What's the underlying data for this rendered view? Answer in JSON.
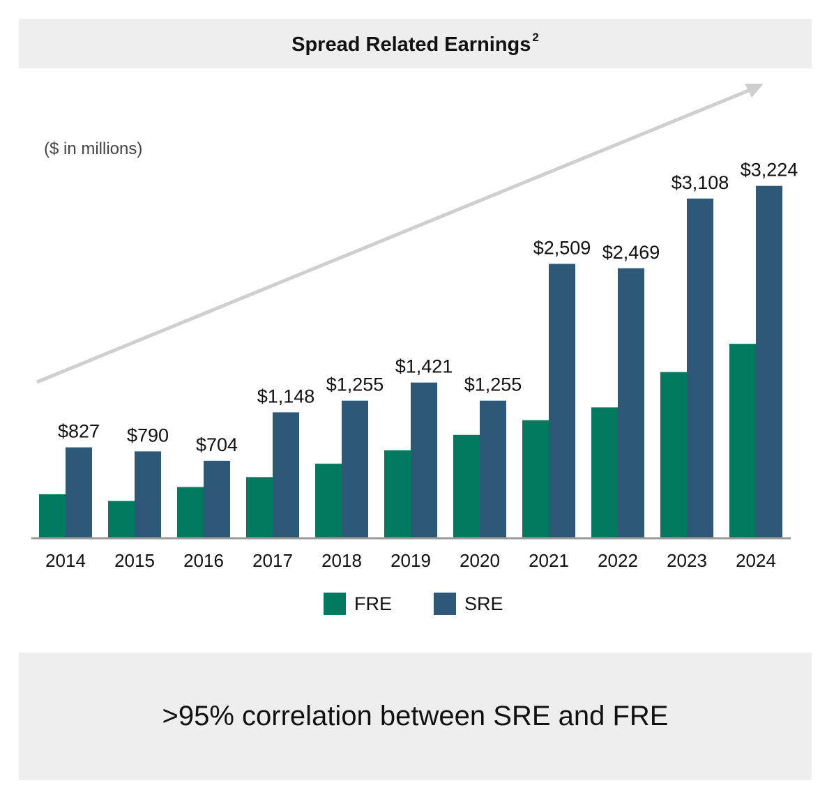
{
  "header": {
    "title": "Spread Related Earnings",
    "superscript": "2"
  },
  "units_note": "($ in millions)",
  "footer": {
    "text": ">95% correlation between SRE and FRE"
  },
  "colors": {
    "FRE": "#007a5e",
    "SRE": "#2d5878",
    "arrow": "#cfcfcf",
    "axis": "#999999"
  },
  "chart_data": {
    "type": "bar",
    "categories": [
      "2014",
      "2015",
      "2016",
      "2017",
      "2018",
      "2019",
      "2020",
      "2021",
      "2022",
      "2023",
      "2024"
    ],
    "series": [
      {
        "name": "FRE",
        "values": [
          397,
          335,
          463,
          554,
          677,
          800,
          941,
          1076,
          1193,
          1517,
          1776
        ],
        "labels": []
      },
      {
        "name": "SRE",
        "values": [
          827,
          790,
          704,
          1148,
          1255,
          1421,
          1255,
          2509,
          2469,
          3108,
          3224
        ],
        "labels": [
          "$827",
          "$790",
          "$704",
          "$1,148",
          "$1,255",
          "$1,421",
          "$1,255",
          "$2,509",
          "$2,469",
          "$3,108",
          "$3,224"
        ]
      }
    ],
    "ylim": [
      0,
      3650
    ],
    "grid": false,
    "legend_placement": "bottom-center"
  }
}
